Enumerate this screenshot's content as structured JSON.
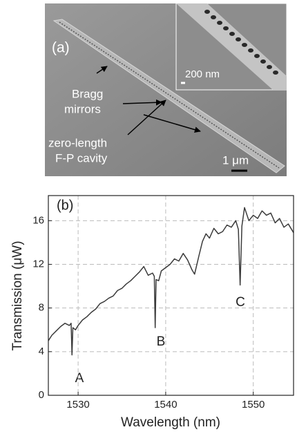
{
  "panel_a": {
    "label": "(a)",
    "bragg_1": "Bragg",
    "bragg_2": "mirrors",
    "cavity_1": "zero-length",
    "cavity_2": "F-P cavity",
    "scale_main": "1 μm",
    "scale_inset": "200 nm"
  },
  "chart_data": {
    "type": "line",
    "panel_label": "(b)",
    "x_label": "Wavelength (nm)",
    "y_label": "Transmission (μW)",
    "annotations": [
      "A",
      "B",
      "C"
    ],
    "color": "#3a3a3a",
    "grid": true,
    "xlim": [
      1526.6,
      1554.6
    ],
    "ylim": [
      0,
      18.3
    ],
    "xticks": [
      1530,
      1540,
      1550
    ],
    "yticks": [
      0,
      4,
      8,
      12,
      16
    ],
    "x": [
      1526.6,
      1527,
      1527.5,
      1528,
      1528.5,
      1529,
      1529.2,
      1529.3,
      1529.4,
      1529.7,
      1530,
      1530.5,
      1531,
      1531.5,
      1532,
      1532.5,
      1533,
      1533.5,
      1534,
      1534.5,
      1535,
      1535.5,
      1536,
      1536.5,
      1537,
      1537.5,
      1538,
      1538.5,
      1538.7,
      1538.8,
      1538.9,
      1539.2,
      1539.5,
      1540,
      1540.5,
      1541,
      1541.5,
      1542,
      1542.5,
      1543,
      1543.3,
      1543.8,
      1544.2,
      1544.6,
      1545,
      1545.5,
      1546,
      1546.5,
      1547,
      1547.5,
      1548,
      1548.3,
      1548.5,
      1548.7,
      1549,
      1549.5,
      1550,
      1550.5,
      1551,
      1551.5,
      1552,
      1552.5,
      1553,
      1553.5,
      1554,
      1554.6
    ],
    "values": [
      5.0,
      5.5,
      5.9,
      6.3,
      6.6,
      6.4,
      6.6,
      3.7,
      6.2,
      6.0,
      6.4,
      6.9,
      7.2,
      7.6,
      7.9,
      8.4,
      8.6,
      8.9,
      9.1,
      9.6,
      9.8,
      10.2,
      10.5,
      10.9,
      11.3,
      11.8,
      11.0,
      11.2,
      10.9,
      6.2,
      10.6,
      10.5,
      11.4,
      11.7,
      12.0,
      12.5,
      12.3,
      13.0,
      12.4,
      11.5,
      11.1,
      12.8,
      14.1,
      14.8,
      14.4,
      15.3,
      14.8,
      15.0,
      15.6,
      15.4,
      16.0,
      15.2,
      10.1,
      15.5,
      17.2,
      16.0,
      16.5,
      16.2,
      16.9,
      16.5,
      16.7,
      15.8,
      16.2,
      15.4,
      15.7,
      14.9
    ]
  }
}
